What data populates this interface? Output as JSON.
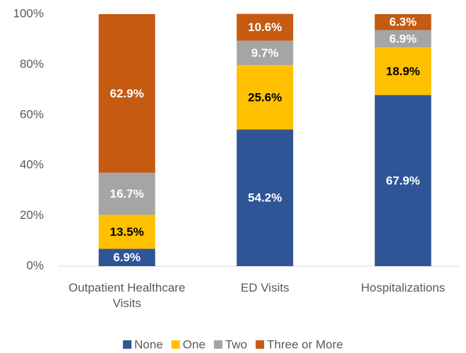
{
  "chart_data": {
    "type": "stacked_bar",
    "categories": [
      "Outpatient Healthcare Visits",
      "ED Visits",
      "Hospitalizations"
    ],
    "series": [
      {
        "name": "None",
        "color": "#2f5597",
        "label_color": "#ffffff",
        "values": [
          6.9,
          54.2,
          67.9
        ],
        "value_labels": [
          "6.9%",
          "54.2%",
          "67.9%"
        ]
      },
      {
        "name": "One",
        "color": "#ffc000",
        "label_color": "#000000",
        "values": [
          13.5,
          25.6,
          18.9
        ],
        "value_labels": [
          "13.5%",
          "25.6%",
          "18.9%"
        ]
      },
      {
        "name": "Two",
        "color": "#a5a5a5",
        "label_color": "#ffffff",
        "values": [
          16.7,
          9.7,
          6.9
        ],
        "value_labels": [
          "16.7%",
          "9.7%",
          "6.9%"
        ]
      },
      {
        "name": "Three or More",
        "color": "#c55a11",
        "label_color": "#ffffff",
        "values": [
          62.9,
          10.6,
          6.3
        ],
        "value_labels": [
          "62.9%",
          "10.6%",
          "6.3%"
        ]
      }
    ],
    "ylim": [
      0,
      100
    ],
    "yticks": [
      {
        "value": 0,
        "label": "0%"
      },
      {
        "value": 20,
        "label": "20%"
      },
      {
        "value": 40,
        "label": "40%"
      },
      {
        "value": 60,
        "label": "60%"
      },
      {
        "value": 80,
        "label": "80%"
      },
      {
        "value": 100,
        "label": "100%"
      }
    ],
    "grid": false,
    "legend": "bottom"
  }
}
